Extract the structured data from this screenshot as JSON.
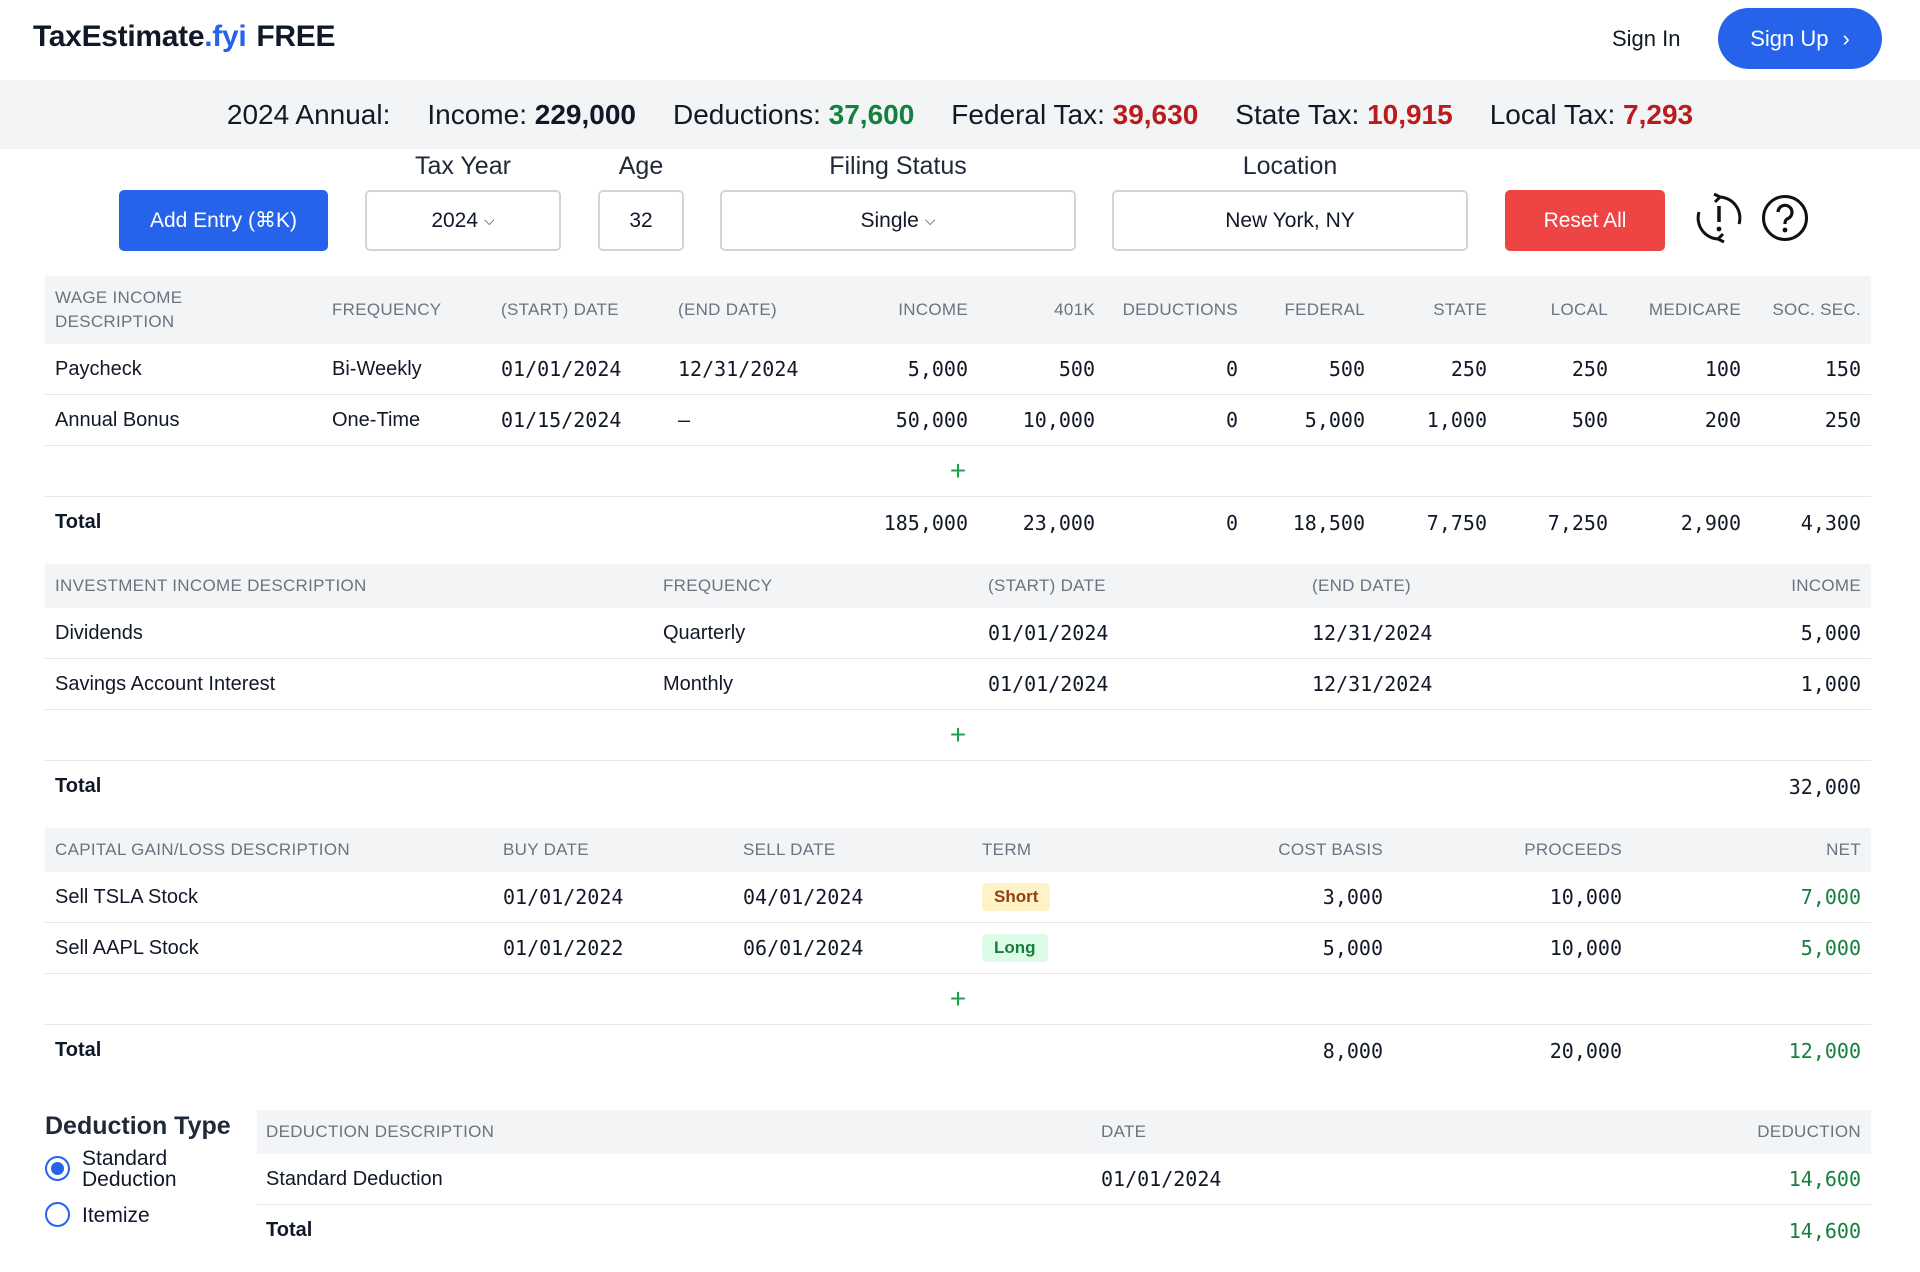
{
  "brand": {
    "name": "TaxEstimate",
    "suffix": ".fyi",
    "tag": "FREE"
  },
  "nav": {
    "signin": "Sign In",
    "signup": "Sign Up",
    "signup_icon": "chevron-right-icon"
  },
  "summary": {
    "label": "2024 Annual:",
    "income_label": "Income:",
    "income": "229,000",
    "deductions_label": "Deductions:",
    "deductions": "37,600",
    "federal_label": "Federal Tax:",
    "federal": "39,630",
    "state_label": "State Tax:",
    "state": "10,915",
    "local_label": "Local Tax:",
    "local": "7,293"
  },
  "controls": {
    "add_entry": "Add Entry (⌘K)",
    "tax_year_label": "Tax Year",
    "tax_year": "2024",
    "age_label": "Age",
    "age": "32",
    "filing_label": "Filing Status",
    "filing": "Single",
    "location_label": "Location",
    "location": "New York, NY",
    "reset": "Reset All",
    "icons": [
      "sync-alert-icon",
      "help-icon"
    ]
  },
  "wage": {
    "headers": [
      "WAGE INCOME",
      "DESCRIPTION",
      "FREQUENCY",
      "(START) DATE",
      "(END DATE)",
      "INCOME",
      "401K",
      "DEDUCTIONS",
      "FEDERAL",
      "STATE",
      "LOCAL",
      "MEDICARE",
      "SOC. SEC."
    ],
    "rows": [
      [
        "Paycheck",
        "Bi-Weekly",
        "01/01/2024",
        "12/31/2024",
        "5,000",
        "500",
        "0",
        "500",
        "250",
        "250",
        "100",
        "150"
      ],
      [
        "Annual Bonus",
        "One-Time",
        "01/15/2024",
        "–",
        "50,000",
        "10,000",
        "0",
        "5,000",
        "1,000",
        "500",
        "200",
        "250"
      ]
    ],
    "add": "+",
    "total": [
      "Total",
      "185,000",
      "23,000",
      "0",
      "18,500",
      "7,750",
      "7,250",
      "2,900",
      "4,300"
    ]
  },
  "investment": {
    "headers": [
      "INVESTMENT INCOME DESCRIPTION",
      "FREQUENCY",
      "(START) DATE",
      "(END DATE)",
      "INCOME"
    ],
    "rows": [
      [
        "Dividends",
        "Quarterly",
        "01/01/2024",
        "12/31/2024",
        "5,000"
      ],
      [
        "Savings Account Interest",
        "Monthly",
        "01/01/2024",
        "12/31/2024",
        "1,000"
      ]
    ],
    "add": "+",
    "total": [
      "Total",
      "32,000"
    ]
  },
  "capital": {
    "headers": [
      "CAPITAL GAIN/LOSS DESCRIPTION",
      "BUY DATE",
      "SELL DATE",
      "TERM",
      "COST BASIS",
      "PROCEEDS",
      "NET"
    ],
    "rows": [
      [
        "Sell TSLA Stock",
        "01/01/2024",
        "04/01/2024",
        "Short",
        "3,000",
        "10,000",
        "7,000"
      ],
      [
        "Sell AAPL Stock",
        "01/01/2022",
        "06/01/2024",
        "Long",
        "5,000",
        "10,000",
        "5,000"
      ]
    ],
    "add": "+",
    "total": [
      "Total",
      "8,000",
      "20,000",
      "12,000"
    ]
  },
  "deduction_type": {
    "title": "Deduction Type",
    "standard_l1": "Standard",
    "standard_l2": "Deduction",
    "itemize": "Itemize"
  },
  "deductions": {
    "headers": [
      "DEDUCTION DESCRIPTION",
      "DATE",
      "DEDUCTION"
    ],
    "rows": [
      [
        "Standard Deduction",
        "01/01/2024",
        "14,600"
      ]
    ],
    "total": [
      "Total",
      "14,600"
    ]
  },
  "colors": {
    "accent": "#2563eb",
    "positive": "#15803d",
    "negative": "#b91c1c",
    "danger_button": "#ef4444"
  }
}
